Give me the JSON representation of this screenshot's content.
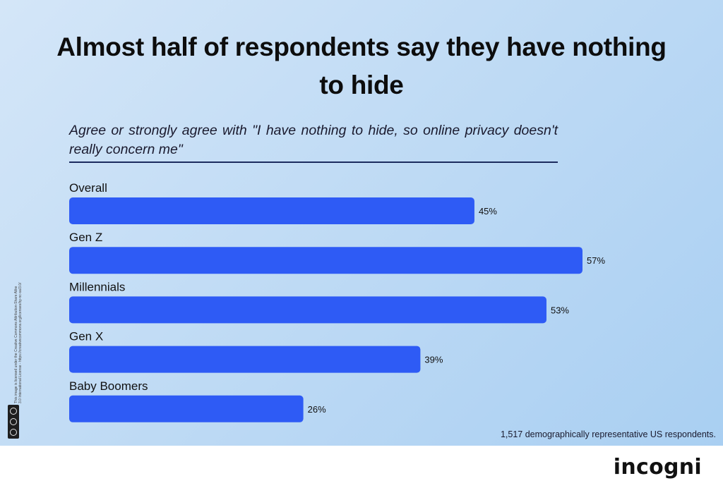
{
  "title": "Almost half of respondents say they have nothing to hide",
  "subtitle": "Agree or strongly agree with \"I have nothing to hide, so online privacy doesn't really concern me\"",
  "footnote": "1,517 demographically representative US respondents.",
  "license": {
    "line1": "This image is licensed under the Creative Commons Attribution-Share Alike",
    "line2": "3.0 International License - https://creativecommons.org/licenses/by-nc-sa/3.0/"
  },
  "logo": "incogni",
  "colors": {
    "bar": "#2e5bf5",
    "label": "#111111",
    "background_start": "#d4e6f8",
    "background_end": "#a9cff2"
  },
  "chart_data": {
    "type": "bar",
    "orientation": "horizontal",
    "title": "Almost half of respondents say they have nothing to hide",
    "subtitle": "Agree or strongly agree with \"I have nothing to hide, so online privacy doesn't really concern me\"",
    "categories": [
      "Overall",
      "Gen Z",
      "Millennials",
      "Gen X",
      "Baby Boomers"
    ],
    "values": [
      45,
      57,
      53,
      39,
      26
    ],
    "value_labels": [
      "45%",
      "57%",
      "53%",
      "39%",
      "26%"
    ],
    "unit": "%",
    "xlim": [
      0,
      57
    ],
    "grid": false,
    "legend": "none"
  }
}
